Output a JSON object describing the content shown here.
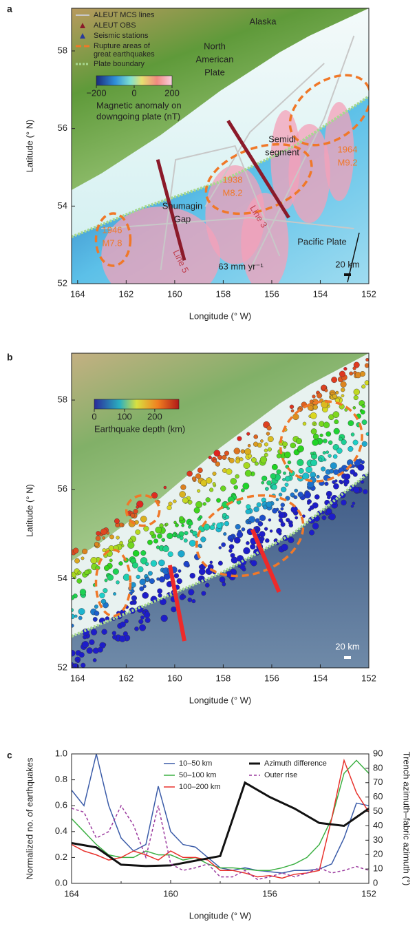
{
  "chart_data": [
    {
      "type": "map",
      "panel": "a",
      "xlabel": "Longitude (° W)",
      "ylabel": "Latitude (° N)",
      "xlim": [
        164.25,
        152
      ],
      "ylim": [
        52,
        59.1
      ],
      "xticks": [
        164,
        162,
        160,
        158,
        156,
        154,
        152
      ],
      "yticks": [
        52,
        54,
        56,
        58
      ],
      "legend": [
        [
          "ALEUT MCS lines"
        ],
        [
          "ALEUT OBS"
        ],
        [
          "Seismic stations"
        ],
        [
          "Rupture areas of",
          "great earthquakes"
        ],
        [
          "Plate boundary"
        ]
      ],
      "colorbar": {
        "label": [
          "Magnetic anomaly on",
          "downgoing plate (nT)"
        ],
        "clim": [
          -200,
          200
        ],
        "ticks": [
          {
            "value": -200,
            "label": "−200"
          },
          0,
          200
        ]
      },
      "annotations": [
        "Alaska",
        [
          "North",
          "American",
          "Plate"
        ],
        [
          "1964",
          "M9.2"
        ],
        [
          "Semidi",
          "segment"
        ],
        [
          "1938",
          "M8.2"
        ],
        [
          "Shumagin",
          "Gap"
        ],
        [
          "1946",
          "M7.8"
        ],
        "Line 3",
        "Line 5",
        "Pacific Plate",
        "63 mm yr⁻¹",
        "20 km"
      ]
    },
    {
      "type": "map",
      "panel": "b",
      "xlabel": "Longitude (° W)",
      "ylabel": "Latitude (° N)",
      "xlim": [
        164.25,
        152
      ],
      "ylim": [
        52,
        59.05
      ],
      "xticks": [
        164,
        162,
        160,
        158,
        156,
        154,
        152
      ],
      "yticks": [
        52,
        54,
        56,
        58
      ],
      "colorbar": {
        "label": [
          "Earthquake depth (km)"
        ],
        "clim": [
          0,
          280
        ],
        "ticks": [
          0,
          100,
          200
        ]
      },
      "annotations": [
        "20 km"
      ]
    },
    {
      "type": "line",
      "panel": "c",
      "xlabel": "Longitude (° W)",
      "ylabel": "Normalized no. of earthquakes",
      "y2label": "Trench azimuth–fabric azimuth (°)",
      "xlim": [
        164,
        152
      ],
      "xticks": [
        164,
        160,
        156,
        152
      ],
      "xminor": [
        162,
        158,
        154
      ],
      "ylim": [
        0,
        1
      ],
      "yticks": [
        {
          "value": 0,
          "label": "0.0"
        },
        {
          "value": 0.2,
          "label": "0.2"
        },
        {
          "value": 0.4,
          "label": "0.4"
        },
        {
          "value": 0.6,
          "label": "0.6"
        },
        {
          "value": 0.8,
          "label": "0.8"
        },
        {
          "value": 1,
          "label": "1.0"
        }
      ],
      "y2lim": [
        0,
        90
      ],
      "y2ticks": [
        0,
        10,
        20,
        30,
        40,
        50,
        60,
        70,
        80,
        90
      ],
      "x": [
        164,
        163.5,
        163,
        162.5,
        162,
        161.5,
        161,
        160.5,
        160,
        159.5,
        159,
        158.5,
        158,
        157.5,
        157,
        156.5,
        156,
        155.5,
        155,
        154.5,
        154,
        153.5,
        153,
        152.5,
        152
      ],
      "series": [
        {
          "name": "10–50 km",
          "color": "#3a5ba8",
          "values": [
            0.72,
            0.6,
            1.0,
            0.6,
            0.35,
            0.25,
            0.3,
            0.75,
            0.4,
            0.3,
            0.28,
            0.2,
            0.12,
            0.1,
            0.12,
            0.1,
            0.09,
            0.08,
            0.1,
            0.1,
            0.11,
            0.15,
            0.35,
            0.62,
            0.6
          ]
        },
        {
          "name": "50–100 km",
          "color": "#3cb043",
          "values": [
            0.5,
            0.4,
            0.3,
            0.22,
            0.2,
            0.2,
            0.25,
            0.22,
            0.22,
            0.18,
            0.2,
            0.15,
            0.12,
            0.12,
            0.11,
            0.1,
            0.1,
            0.12,
            0.15,
            0.2,
            0.3,
            0.5,
            0.85,
            0.95,
            0.85
          ]
        },
        {
          "name": "100–200 km",
          "color": "#e8312b",
          "values": [
            0.3,
            0.25,
            0.22,
            0.18,
            0.2,
            0.25,
            0.22,
            0.18,
            0.25,
            0.2,
            0.2,
            0.18,
            0.1,
            0.1,
            0.08,
            0.05,
            0.06,
            0.04,
            0.07,
            0.08,
            0.1,
            0.5,
            0.95,
            0.7,
            0.55
          ]
        },
        {
          "name": "Azimuth difference",
          "color": "#111111",
          "axis": "y2",
          "width": 3,
          "x": [
            164,
            163,
            162,
            161,
            160,
            158,
            157,
            156,
            155,
            154,
            153,
            152
          ],
          "values": [
            28,
            25,
            13,
            12,
            12.5,
            19,
            70,
            60,
            52,
            42,
            40,
            52
          ]
        },
        {
          "name": "Outer rise",
          "color": "#9b3a9e",
          "dash": true,
          "values": [
            0.58,
            0.55,
            0.35,
            0.4,
            0.6,
            0.45,
            0.2,
            0.6,
            0.15,
            0.1,
            0.12,
            0.15,
            0.05,
            0.05,
            0.1,
            0.03,
            0.05,
            0.08,
            0.05,
            0.08,
            0.12,
            0.08,
            0.1,
            0.13,
            0.1
          ]
        }
      ]
    }
  ]
}
